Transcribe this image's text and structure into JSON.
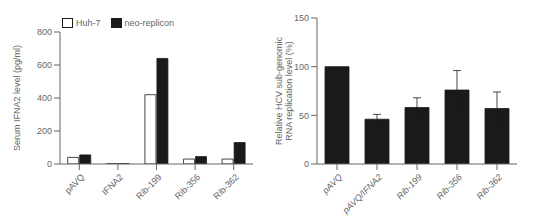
{
  "chart_data": [
    {
      "type": "bar",
      "categories": [
        "pAVQ",
        "IFNA2",
        "Rib-199",
        "Rib-356",
        "Rib-362"
      ],
      "series": [
        {
          "name": "Huh-7",
          "color": "#ffffff",
          "values": [
            40,
            2,
            420,
            30,
            30
          ]
        },
        {
          "name": "neo-replicon",
          "color": "#1a1a1a",
          "values": [
            55,
            2,
            640,
            45,
            130
          ]
        }
      ],
      "y_label": "Serum IFNA2 level (pg/ml)",
      "ylim": [
        0,
        800
      ],
      "yticks": [
        0,
        200,
        400,
        600,
        800
      ],
      "legend": "upper left",
      "grid": false
    },
    {
      "type": "bar",
      "categories": [
        "pAVQ",
        "pAVQ/IFNA2",
        "Rib-199",
        "Rib-356",
        "Rib-362"
      ],
      "values": [
        100,
        46,
        58,
        76,
        57
      ],
      "errors": [
        0,
        5,
        10,
        20,
        17
      ],
      "color": "#1a1a1a",
      "y_label": "Relative HCV sub-genomic\nRNA replication level (%)",
      "ylim": [
        0,
        150
      ],
      "yticks": [
        0,
        50,
        100,
        150
      ],
      "grid": false
    }
  ]
}
